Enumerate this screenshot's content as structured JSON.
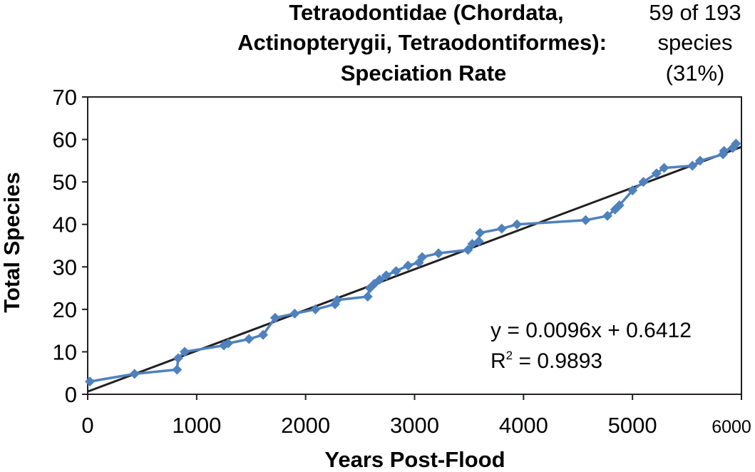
{
  "chart_data": {
    "type": "scatter",
    "title_lines": [
      "Tetraodontidae (Chordata,",
      "Actinopterygii, Tetraodontiformes):",
      "Speciation Rate"
    ],
    "subtitle_lines": [
      "59 of 193",
      "species",
      "(31%)"
    ],
    "xlabel": "Years Post-Flood",
    "ylabel": "Total Species",
    "xlim": [
      0,
      6000
    ],
    "ylim": [
      0,
      70
    ],
    "xticks": [
      "0",
      "1000",
      "2000",
      "3000",
      "4000",
      "5000",
      "6000"
    ],
    "yticks": [
      "0",
      "10",
      "20",
      "30",
      "40",
      "50",
      "60",
      "70"
    ],
    "grid": false,
    "series": [
      {
        "color": "#4f81bd",
        "marker": "diamond",
        "connected": true,
        "points": [
          [
            20,
            3
          ],
          [
            430,
            4.8
          ],
          [
            820,
            5.8
          ],
          [
            830,
            8.5
          ],
          [
            890,
            10
          ],
          [
            1250,
            11.5
          ],
          [
            1290,
            12
          ],
          [
            1480,
            13
          ],
          [
            1610,
            14
          ],
          [
            1720,
            18
          ],
          [
            1900,
            19
          ],
          [
            2090,
            20
          ],
          [
            2270,
            21.2
          ],
          [
            2290,
            22.2
          ],
          [
            2570,
            23
          ],
          [
            2590,
            25
          ],
          [
            2630,
            26
          ],
          [
            2680,
            27
          ],
          [
            2740,
            28
          ],
          [
            2830,
            29
          ],
          [
            2940,
            30.3
          ],
          [
            3040,
            31
          ],
          [
            3070,
            32.3
          ],
          [
            3220,
            33.2
          ],
          [
            3490,
            34
          ],
          [
            3530,
            35.4
          ],
          [
            3590,
            36
          ],
          [
            3600,
            38
          ],
          [
            3800,
            39
          ],
          [
            3940,
            40
          ],
          [
            4570,
            41
          ],
          [
            4770,
            42
          ],
          [
            4840,
            43.5
          ],
          [
            4880,
            44.5
          ],
          [
            5000,
            48
          ],
          [
            5100,
            50
          ],
          [
            5220,
            52
          ],
          [
            5290,
            53.3
          ],
          [
            5550,
            53.8
          ],
          [
            5620,
            55
          ],
          [
            5830,
            56.5
          ],
          [
            5840,
            57.3
          ],
          [
            5920,
            58
          ],
          [
            5950,
            59
          ]
        ]
      }
    ],
    "trendline": {
      "slope": 0.0096,
      "intercept": 0.6412,
      "color": "#231f20"
    },
    "annotations": {
      "equation": "y = 0.0096x + 0.6412",
      "r2_prefix": "R",
      "r2_sup": "2",
      "r2_value": " = 0.9893"
    }
  }
}
